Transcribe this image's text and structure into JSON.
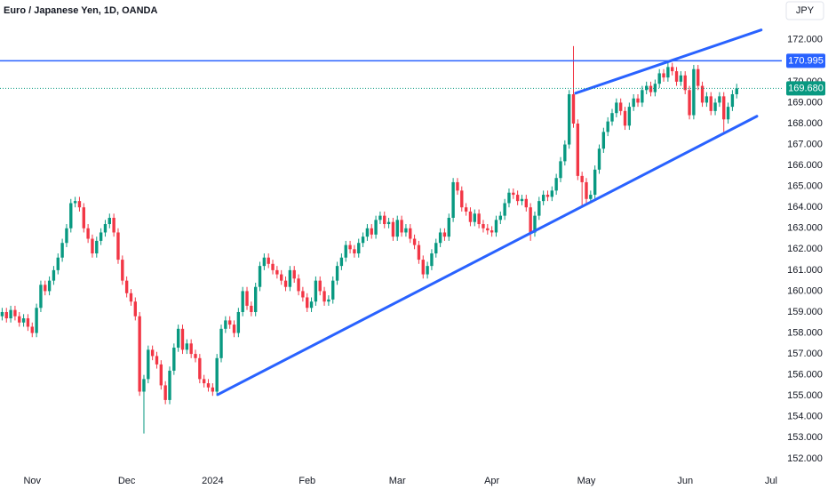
{
  "chart_data": {
    "type": "candlestick",
    "title": "Euro / Japanese Yen, 1D, OANDA",
    "currency_label": "JPY",
    "categories": [
      null,
      null,
      null,
      null,
      null,
      null,
      null,
      "Nov",
      null,
      null,
      null,
      null,
      null,
      null,
      null,
      null,
      null,
      null,
      null,
      null,
      null,
      null,
      null,
      null,
      null,
      null,
      null,
      null,
      null,
      "Dec",
      null,
      null,
      null,
      null,
      null,
      null,
      null,
      null,
      null,
      null,
      null,
      null,
      null,
      null,
      null,
      null,
      null,
      null,
      null,
      "2024",
      null,
      null,
      null,
      null,
      null,
      null,
      null,
      null,
      null,
      null,
      null,
      null,
      null,
      null,
      null,
      null,
      null,
      null,
      null,
      null,
      null,
      "Feb",
      null,
      null,
      null,
      null,
      null,
      null,
      null,
      null,
      null,
      null,
      null,
      null,
      null,
      null,
      null,
      null,
      null,
      null,
      null,
      null,
      "Mar",
      null,
      null,
      null,
      null,
      null,
      null,
      null,
      null,
      null,
      null,
      null,
      null,
      null,
      null,
      null,
      null,
      null,
      null,
      null,
      null,
      null,
      "Apr",
      null,
      null,
      null,
      null,
      null,
      null,
      null,
      null,
      null,
      null,
      null,
      null,
      null,
      null,
      null,
      null,
      null,
      null,
      null,
      null,
      null,
      "May",
      null,
      null,
      null,
      null,
      null,
      null,
      null,
      null,
      null,
      null,
      null,
      null,
      null,
      null,
      null,
      null,
      null,
      null,
      null,
      null,
      null,
      null,
      "Jun",
      null,
      null,
      null,
      null,
      null,
      null,
      null,
      null,
      null,
      null,
      null,
      null,
      null,
      null,
      null,
      null,
      null,
      null,
      null,
      "Jul",
      null,
      null
    ],
    "open": [
      158.8,
      159.0,
      158.7,
      159.1,
      158.8,
      158.5,
      158.7,
      158.3,
      158.0,
      159.2,
      160.3,
      160.0,
      160.5,
      161.0,
      161.6,
      162.3,
      163.0,
      164.2,
      164.3,
      164.0,
      163.0,
      162.5,
      161.8,
      162.4,
      162.8,
      163.2,
      163.5,
      162.8,
      161.5,
      160.5,
      159.9,
      159.5,
      158.8,
      155.2,
      155.8,
      157.2,
      156.9,
      156.5,
      155.5,
      154.8,
      156.2,
      157.3,
      158.2,
      157.2,
      157.5,
      157.0,
      156.8,
      155.8,
      155.6,
      155.4,
      155.2,
      156.8,
      158.2,
      158.6,
      158.4,
      158.0,
      159.0,
      160.0,
      159.3,
      159.0,
      160.2,
      161.2,
      161.6,
      161.3,
      161.0,
      160.8,
      160.5,
      160.2,
      161.0,
      160.6,
      160.0,
      159.7,
      159.2,
      159.5,
      160.5,
      160.0,
      159.5,
      159.6,
      160.5,
      161.2,
      161.6,
      162.2,
      162.0,
      161.8,
      162.3,
      162.6,
      163.0,
      162.7,
      163.4,
      163.6,
      163.2,
      163.3,
      162.6,
      163.4,
      162.8,
      163.0,
      162.5,
      162.2,
      161.5,
      160.8,
      161.2,
      161.8,
      162.3,
      162.8,
      162.6,
      163.5,
      165.2,
      164.8,
      164.0,
      163.8,
      163.3,
      163.7,
      163.2,
      163.0,
      162.9,
      162.8,
      163.4,
      163.6,
      164.2,
      164.7,
      164.6,
      164.3,
      164.4,
      164.0,
      162.8,
      163.6,
      164.3,
      164.6,
      164.5,
      164.8,
      165.4,
      166.2,
      167.0,
      169.4,
      168.0,
      165.5,
      165.2,
      164.4,
      164.6,
      165.8,
      166.8,
      167.6,
      168.1,
      168.5,
      169.0,
      168.6,
      167.9,
      168.8,
      169.2,
      169.0,
      169.6,
      169.8,
      169.5,
      169.9,
      170.4,
      170.2,
      170.7,
      170.5,
      170.0,
      170.3,
      169.6,
      168.4,
      170.6,
      169.8,
      169.0,
      169.3,
      168.6,
      169.0,
      169.3,
      168.2,
      168.8,
      169.4,
      null,
      null,
      null,
      null,
      null,
      null,
      null,
      null,
      null,
      null
    ],
    "high": [
      159.2,
      159.2,
      159.3,
      159.3,
      159.0,
      158.9,
      158.9,
      158.5,
      159.4,
      160.5,
      160.5,
      160.7,
      161.2,
      161.8,
      162.5,
      163.2,
      164.4,
      164.5,
      164.5,
      164.2,
      163.2,
      162.7,
      162.6,
      163.0,
      163.4,
      163.7,
      163.7,
      163.0,
      161.7,
      160.7,
      160.1,
      159.7,
      159.0,
      156.0,
      157.4,
      157.4,
      157.1,
      156.7,
      155.7,
      156.4,
      157.5,
      158.4,
      158.4,
      157.7,
      157.7,
      157.2,
      157.0,
      156.0,
      155.8,
      155.6,
      157.0,
      158.4,
      158.8,
      158.8,
      158.6,
      159.2,
      160.2,
      160.2,
      159.5,
      160.4,
      161.4,
      161.8,
      161.8,
      161.5,
      161.2,
      161.0,
      160.7,
      161.2,
      161.2,
      160.8,
      160.2,
      159.9,
      159.7,
      160.7,
      160.7,
      160.2,
      159.8,
      160.7,
      161.4,
      161.8,
      162.4,
      162.4,
      162.2,
      162.5,
      162.8,
      163.2,
      163.2,
      163.6,
      163.8,
      163.8,
      163.5,
      163.5,
      163.6,
      163.6,
      163.2,
      163.2,
      162.7,
      162.4,
      161.7,
      161.4,
      162.0,
      162.5,
      163.0,
      163.0,
      163.7,
      165.4,
      165.4,
      165.0,
      164.2,
      164.0,
      163.9,
      163.9,
      163.4,
      163.2,
      163.1,
      163.6,
      163.8,
      164.4,
      164.9,
      164.9,
      164.8,
      164.6,
      164.6,
      164.2,
      163.8,
      164.5,
      164.8,
      164.8,
      165.0,
      165.6,
      166.4,
      167.2,
      169.6,
      171.7,
      168.2,
      165.7,
      165.4,
      164.8,
      166.0,
      167.0,
      167.8,
      168.3,
      168.7,
      169.2,
      169.2,
      168.8,
      169.0,
      169.4,
      169.4,
      169.8,
      170.0,
      170.0,
      170.1,
      170.6,
      170.6,
      170.9,
      170.9,
      170.7,
      170.5,
      170.5,
      169.8,
      170.8,
      170.8,
      170.0,
      169.5,
      169.5,
      169.2,
      169.5,
      169.5,
      169.0,
      169.6,
      169.9,
      null,
      null,
      null,
      null,
      null,
      null,
      null,
      null,
      null,
      null
    ],
    "low": [
      158.6,
      158.5,
      158.5,
      158.6,
      158.3,
      158.3,
      158.1,
      157.8,
      157.8,
      159.0,
      159.8,
      159.8,
      160.3,
      160.8,
      161.4,
      162.1,
      162.8,
      164.0,
      163.8,
      162.8,
      162.3,
      161.6,
      161.6,
      162.2,
      162.6,
      163.0,
      162.6,
      161.3,
      160.3,
      159.7,
      159.3,
      158.6,
      155.0,
      153.2,
      155.6,
      156.7,
      156.3,
      155.3,
      154.6,
      154.6,
      156.0,
      157.1,
      157.0,
      157.0,
      156.8,
      156.6,
      155.6,
      155.4,
      155.2,
      155.0,
      155.0,
      156.6,
      158.0,
      158.2,
      157.8,
      157.8,
      158.8,
      159.1,
      158.8,
      158.8,
      160.0,
      161.0,
      161.1,
      160.8,
      160.6,
      160.3,
      160.0,
      160.0,
      160.4,
      159.8,
      159.5,
      159.0,
      159.0,
      159.3,
      159.8,
      159.3,
      159.3,
      159.4,
      160.3,
      161.0,
      161.4,
      161.8,
      161.6,
      161.6,
      162.1,
      162.4,
      162.5,
      162.5,
      163.2,
      163.0,
      163.0,
      162.4,
      162.4,
      162.6,
      162.6,
      162.3,
      162.0,
      161.3,
      160.6,
      160.6,
      161.0,
      161.6,
      162.1,
      162.4,
      162.4,
      163.3,
      164.6,
      163.8,
      163.6,
      163.1,
      163.1,
      163.0,
      162.8,
      162.7,
      162.6,
      162.6,
      163.2,
      163.4,
      164.0,
      164.4,
      164.1,
      164.1,
      163.8,
      162.4,
      162.6,
      163.4,
      164.1,
      164.3,
      164.3,
      164.6,
      165.2,
      166.0,
      166.8,
      167.8,
      165.3,
      164.0,
      164.2,
      164.2,
      164.4,
      165.6,
      166.6,
      167.4,
      167.9,
      168.3,
      168.4,
      167.7,
      167.7,
      168.6,
      168.8,
      168.8,
      169.4,
      169.3,
      169.3,
      169.7,
      170.0,
      170.0,
      170.3,
      169.8,
      169.8,
      169.4,
      168.2,
      168.2,
      169.6,
      168.8,
      168.8,
      168.4,
      168.4,
      168.8,
      167.6,
      168.0,
      168.6,
      169.2,
      null,
      null,
      null,
      null,
      null,
      null,
      null,
      null,
      null,
      null
    ],
    "close": [
      159.0,
      158.7,
      159.1,
      158.8,
      158.5,
      158.7,
      158.3,
      158.0,
      159.2,
      160.3,
      160.0,
      160.5,
      161.0,
      161.6,
      162.3,
      163.0,
      164.2,
      164.3,
      164.0,
      163.0,
      162.5,
      161.8,
      162.4,
      162.8,
      163.2,
      163.5,
      162.8,
      161.5,
      160.5,
      159.9,
      159.5,
      158.8,
      155.2,
      155.8,
      157.2,
      156.9,
      156.5,
      155.5,
      154.8,
      156.2,
      157.3,
      158.2,
      157.2,
      157.5,
      157.0,
      156.8,
      155.8,
      155.6,
      155.4,
      155.2,
      156.8,
      158.2,
      158.6,
      158.4,
      158.0,
      159.0,
      160.0,
      159.3,
      159.0,
      160.2,
      161.2,
      161.6,
      161.3,
      161.0,
      160.8,
      160.5,
      160.2,
      161.0,
      160.6,
      160.0,
      159.7,
      159.2,
      159.5,
      160.5,
      160.0,
      159.5,
      159.6,
      160.5,
      161.2,
      161.6,
      162.2,
      162.0,
      161.8,
      162.3,
      162.6,
      163.0,
      162.7,
      163.4,
      163.6,
      163.2,
      163.3,
      162.6,
      163.4,
      162.8,
      163.0,
      162.5,
      162.2,
      161.5,
      160.8,
      161.2,
      161.8,
      162.3,
      162.8,
      162.6,
      163.5,
      165.2,
      164.8,
      164.0,
      163.8,
      163.3,
      163.7,
      163.2,
      163.0,
      162.9,
      162.8,
      163.4,
      163.6,
      164.2,
      164.7,
      164.6,
      164.3,
      164.4,
      164.0,
      162.8,
      163.6,
      164.3,
      164.6,
      164.5,
      164.8,
      165.4,
      166.2,
      167.0,
      169.4,
      168.0,
      165.5,
      165.2,
      164.4,
      164.6,
      165.8,
      166.8,
      167.6,
      168.1,
      168.5,
      169.0,
      168.6,
      167.9,
      168.8,
      169.2,
      169.0,
      169.6,
      169.8,
      169.5,
      169.9,
      170.4,
      170.2,
      170.7,
      170.5,
      170.0,
      170.3,
      169.6,
      168.4,
      170.6,
      169.8,
      169.0,
      169.3,
      168.6,
      169.0,
      169.3,
      168.2,
      168.8,
      169.4,
      169.68,
      null,
      null,
      null,
      null,
      null,
      null,
      null,
      null,
      null,
      null
    ],
    "up_color": "#089981",
    "down_color": "#f23645",
    "ylim": [
      151.4,
      173.9
    ],
    "yticks": [
      {
        "value": 152,
        "label": "152.000"
      },
      {
        "value": 153,
        "label": "153.000"
      },
      {
        "value": 154,
        "label": "154.000"
      },
      {
        "value": 155,
        "label": "155.000"
      },
      {
        "value": 156,
        "label": "156.000"
      },
      {
        "value": 157,
        "label": "157.000"
      },
      {
        "value": 158,
        "label": "158.000"
      },
      {
        "value": 159,
        "label": "159.000"
      },
      {
        "value": 160,
        "label": "160.000"
      },
      {
        "value": 161,
        "label": "161.000"
      },
      {
        "value": 162,
        "label": "162.000"
      },
      {
        "value": 163,
        "label": "163.000"
      },
      {
        "value": 164,
        "label": "164.000"
      },
      {
        "value": 165,
        "label": "165.000"
      },
      {
        "value": 166,
        "label": "166.000"
      },
      {
        "value": 167,
        "label": "167.000"
      },
      {
        "value": 168,
        "label": "168.000"
      },
      {
        "value": 169,
        "label": "169.000"
      },
      {
        "value": 170,
        "label": "170.000"
      },
      {
        "value": 171,
        "label": "171.000"
      },
      {
        "value": 172,
        "label": "172.000"
      }
    ],
    "horizontal_lines": [
      {
        "value": 170.995,
        "label": "170.995",
        "color": "#2962ff",
        "style": "solid"
      },
      {
        "value": 169.68,
        "label": "169.680",
        "color": "#089981",
        "style": "dotted"
      }
    ],
    "trend_lines": [
      {
        "start_index": 50.2,
        "start": 155.06,
        "end_index": 175.7,
        "end": 168.35,
        "color": "#2962ff"
      },
      {
        "start_index": 133.5,
        "start": 169.45,
        "end_index": 176.7,
        "end": 172.47,
        "color": "#2962ff"
      }
    ]
  }
}
